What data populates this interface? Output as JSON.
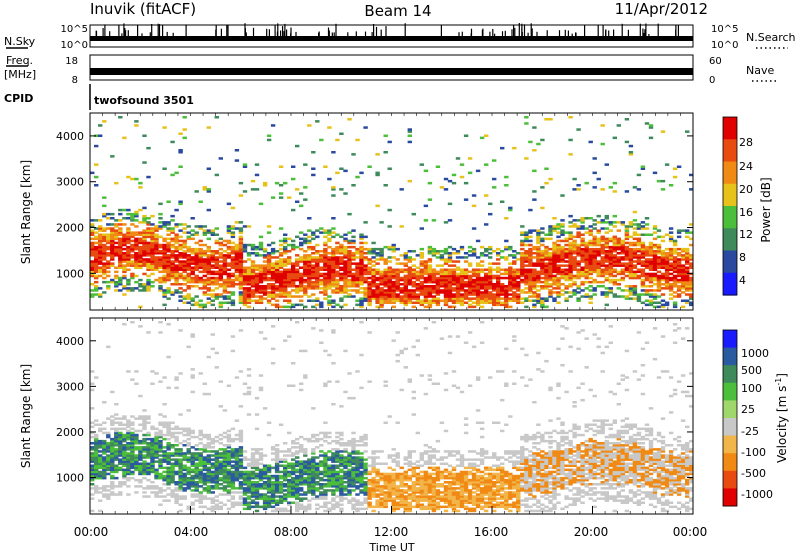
{
  "header": {
    "station": "Inuvik (fitACF)",
    "beam": "Beam 14",
    "date": "11/Apr/2012"
  },
  "colors": {
    "power": [
      "#1a1aff",
      "#2a4aa0",
      "#3f8a5a",
      "#4cbf3a",
      "#e6c21a",
      "#f08a14",
      "#e84a10",
      "#e00000"
    ],
    "velocity": [
      "#e00000",
      "#e84a10",
      "#f08a14",
      "#f2b54a",
      "#c8c8c8",
      "#9fd76b",
      "#4cbf3a",
      "#3f8a5a",
      "#2a5aa0",
      "#1a1aff"
    ]
  },
  "chart_data": [
    {
      "type": "line",
      "panel": "nsky-nsearch",
      "left_label": "N.Sky",
      "right_label": "N.Search",
      "left_ticks": [
        "10^5",
        "10^0"
      ],
      "right_ticks": [
        "10^5",
        "10^0"
      ]
    },
    {
      "type": "line",
      "panel": "freq-nave",
      "left_label_top": "Freq.",
      "left_label_bottom": "[MHz]",
      "right_label": "Nave",
      "left_ticks": [
        "18",
        "8"
      ],
      "right_ticks": [
        "60",
        "0"
      ]
    },
    {
      "type": "table",
      "panel": "cpid",
      "label": "CPID",
      "value": "twofsound 3501"
    },
    {
      "type": "heatmap",
      "panel": "power",
      "ylabel": "Slant Range [km]",
      "yticks": [
        1000,
        2000,
        3000,
        4000
      ],
      "ylim": [
        200,
        4500
      ],
      "xlim_hours": [
        0,
        24
      ],
      "colorbar_label": "Power [dB]",
      "colorbar_ticks": [
        "4",
        "8",
        "12",
        "16",
        "20",
        "24",
        "28"
      ]
    },
    {
      "type": "heatmap",
      "panel": "velocity",
      "ylabel": "Slant Range [km]",
      "yticks": [
        1000,
        2000,
        3000,
        4000
      ],
      "ylim": [
        200,
        4500
      ],
      "xlim_hours": [
        0,
        24
      ],
      "colorbar_label": "Velocity [m s",
      "colorbar_label_sup": "-1",
      "colorbar_label_end": "]",
      "colorbar_ticks": [
        "1000",
        "500",
        "100",
        "25",
        "-25",
        "-100",
        "-500",
        "-1000"
      ]
    },
    {
      "type": "table",
      "panel": "time-axis",
      "xticks": [
        "00:00",
        "04:00",
        "08:00",
        "12:00",
        "16:00",
        "20:00",
        "00:00"
      ],
      "xlabel": "Time UT"
    }
  ]
}
